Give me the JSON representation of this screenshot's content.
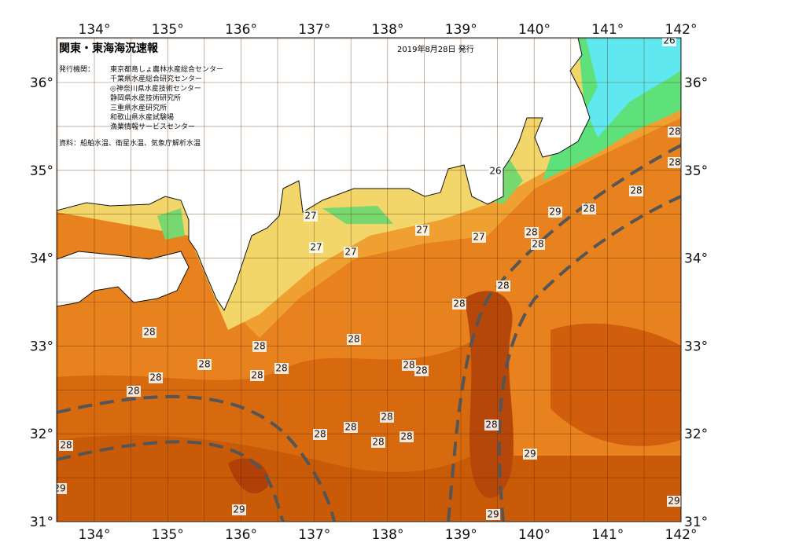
{
  "header": {
    "title": "関東・東海海況速報",
    "date": "2019年8月28日 発行",
    "issuer_label": "発行機関：",
    "issuers": [
      "東京都島しょ農林水産総合センター",
      "千葉県水産総合研究センター",
      "◎神奈川県水産技術センター",
      "静岡県水産技術研究所",
      "三重県水産研究所",
      "和歌山県水産試験場",
      "漁業情報サービスセンター"
    ],
    "source": "資料：船舶水温、衛星水温、気象庁解析水温"
  },
  "axes": {
    "longitude": [
      "134°",
      "135°",
      "136°",
      "137°",
      "138°",
      "139°",
      "140°",
      "141°",
      "142°"
    ],
    "latitude": [
      "36°",
      "35°",
      "34°",
      "33°",
      "32°",
      "31°"
    ]
  },
  "contour_labels": [
    26,
    26,
    27,
    27,
    27,
    27,
    27,
    28,
    28,
    28,
    28,
    28,
    28,
    28,
    28,
    28,
    28,
    28,
    28,
    28,
    28,
    28,
    28,
    28,
    28,
    28,
    28,
    28,
    28,
    28,
    28,
    28,
    29,
    29,
    29,
    29,
    29,
    29
  ]
}
